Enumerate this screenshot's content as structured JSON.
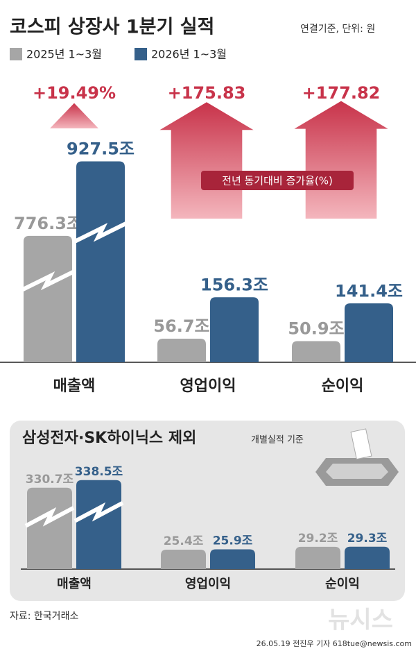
{
  "title": "코스피 상장사 1분기 실적",
  "subtitle": "연결기준, 단위: 원",
  "chart_data": [
    {
      "type": "bar",
      "categories": [
        "매출액",
        "영업이익",
        "순이익"
      ],
      "series": [
        {
          "name": "2025년 1~3월",
          "color": "#a6a6a6",
          "values": [
            776.3,
            56.7,
            50.9
          ],
          "value_labels": [
            "776.3조",
            "56.7조",
            "50.9조"
          ]
        },
        {
          "name": "2026년 1~3월",
          "color": "#35608a",
          "values": [
            927.5,
            156.3,
            141.4
          ],
          "value_labels": [
            "927.5조",
            "156.3조",
            "141.4조"
          ]
        }
      ],
      "growth": {
        "label": "전년 동기대비 증가율(%)",
        "color": "#c8334a",
        "values": [
          19.49,
          175.83,
          177.82
        ],
        "value_labels": [
          "+19.49%",
          "+175.83",
          "+177.82"
        ]
      }
    },
    {
      "type": "bar",
      "title": "삼성전자·SK하이닉스 제외",
      "subtitle": "개별실적 기준",
      "categories": [
        "매출액",
        "영업이익",
        "순이익"
      ],
      "series": [
        {
          "color": "#a6a6a6",
          "values": [
            330.7,
            25.4,
            29.2
          ],
          "value_labels": [
            "330.7조",
            "25.4조",
            "29.2조"
          ]
        },
        {
          "color": "#35608a",
          "values": [
            338.5,
            25.9,
            29.3
          ],
          "value_labels": [
            "338.5조",
            "25.9조",
            "29.3조"
          ]
        }
      ]
    }
  ],
  "source": "자료: 한국거래소",
  "credit": "26.05.19 전진우 기자 618tue@newsis.com",
  "watermark": "뉴시스"
}
